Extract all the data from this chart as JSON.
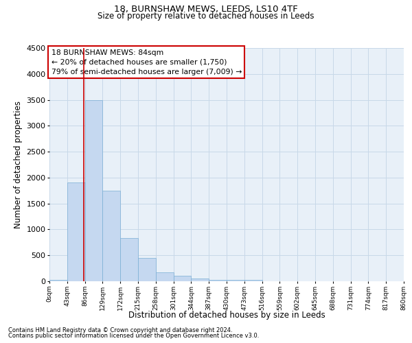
{
  "title1": "18, BURNSHAW MEWS, LEEDS, LS10 4TF",
  "title2": "Size of property relative to detached houses in Leeds",
  "xlabel": "Distribution of detached houses by size in Leeds",
  "ylabel": "Number of detached properties",
  "bar_color": "#c5d8f0",
  "bar_edge_color": "#7aaed4",
  "grid_color": "#c8d8e8",
  "background_color": "#e8f0f8",
  "property_line_x": 84,
  "property_line_color": "#cc0000",
  "annotation_text": "18 BURNSHAW MEWS: 84sqm\n← 20% of detached houses are smaller (1,750)\n79% of semi-detached houses are larger (7,009) →",
  "annotation_box_color": "#ffffff",
  "annotation_box_edge_color": "#cc0000",
  "bin_edges": [
    0,
    43,
    86,
    129,
    172,
    215,
    258,
    301,
    344,
    387,
    430,
    473,
    516,
    559,
    602,
    645,
    688,
    731,
    774,
    817,
    860
  ],
  "bar_heights": [
    30,
    1900,
    3500,
    1750,
    830,
    450,
    175,
    100,
    55,
    30,
    20,
    30,
    0,
    0,
    0,
    0,
    0,
    0,
    0,
    0
  ],
  "tick_labels": [
    "0sqm",
    "43sqm",
    "86sqm",
    "129sqm",
    "172sqm",
    "215sqm",
    "258sqm",
    "301sqm",
    "344sqm",
    "387sqm",
    "430sqm",
    "473sqm",
    "516sqm",
    "559sqm",
    "602sqm",
    "645sqm",
    "688sqm",
    "731sqm",
    "774sqm",
    "817sqm",
    "860sqm"
  ],
  "ylim": [
    0,
    4500
  ],
  "yticks": [
    0,
    500,
    1000,
    1500,
    2000,
    2500,
    3000,
    3500,
    4000,
    4500
  ],
  "footer1": "Contains HM Land Registry data © Crown copyright and database right 2024.",
  "footer2": "Contains public sector information licensed under the Open Government Licence v3.0."
}
